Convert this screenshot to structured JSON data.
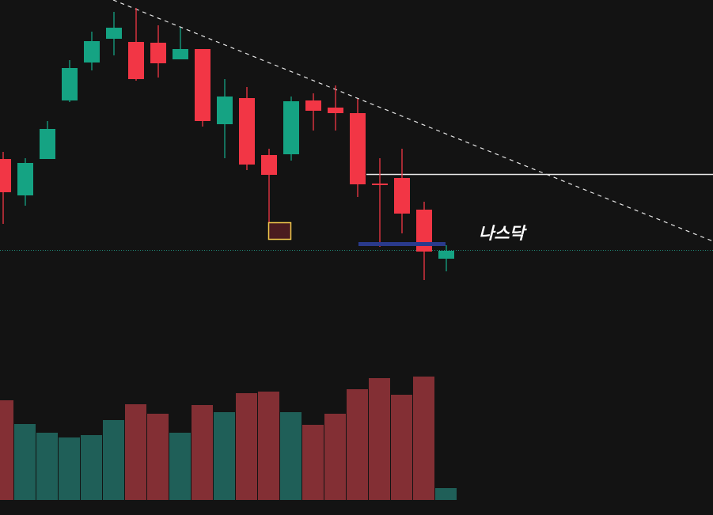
{
  "chart_data": {
    "type": "candlestick",
    "annotation": "나스닥",
    "open": [
      450,
      404,
      450,
      524,
      572,
      602,
      598,
      597,
      576,
      589,
      494,
      527,
      455,
      456,
      524,
      515,
      508,
      419,
      426,
      386,
      324
    ],
    "close": [
      408,
      445,
      488,
      565,
      599,
      616,
      551,
      571,
      589,
      498,
      529,
      443,
      430,
      523,
      511,
      508,
      418,
      417,
      381,
      333,
      334
    ],
    "high": [
      459,
      451,
      498,
      575,
      611,
      636,
      641,
      619,
      616,
      589,
      551,
      541,
      463,
      529,
      533,
      543,
      526,
      451,
      463,
      396,
      341
    ],
    "low": [
      368,
      391,
      450,
      522,
      562,
      581,
      549,
      553,
      576,
      491,
      451,
      436,
      351,
      448,
      486,
      486,
      402,
      339,
      356,
      297,
      308
    ],
    "volume": [
      126,
      96,
      85,
      79,
      82,
      101,
      121,
      109,
      85,
      120,
      111,
      135,
      137,
      111,
      95,
      109,
      140,
      154,
      133,
      156,
      15
    ],
    "up_color": "#15a383",
    "down_color": "#f23645",
    "volume_up_color": "#1f5f58",
    "volume_down_color": "#832f34",
    "ylim": [
      0,
      651
    ],
    "volume_ylim": [
      0,
      200
    ]
  }
}
